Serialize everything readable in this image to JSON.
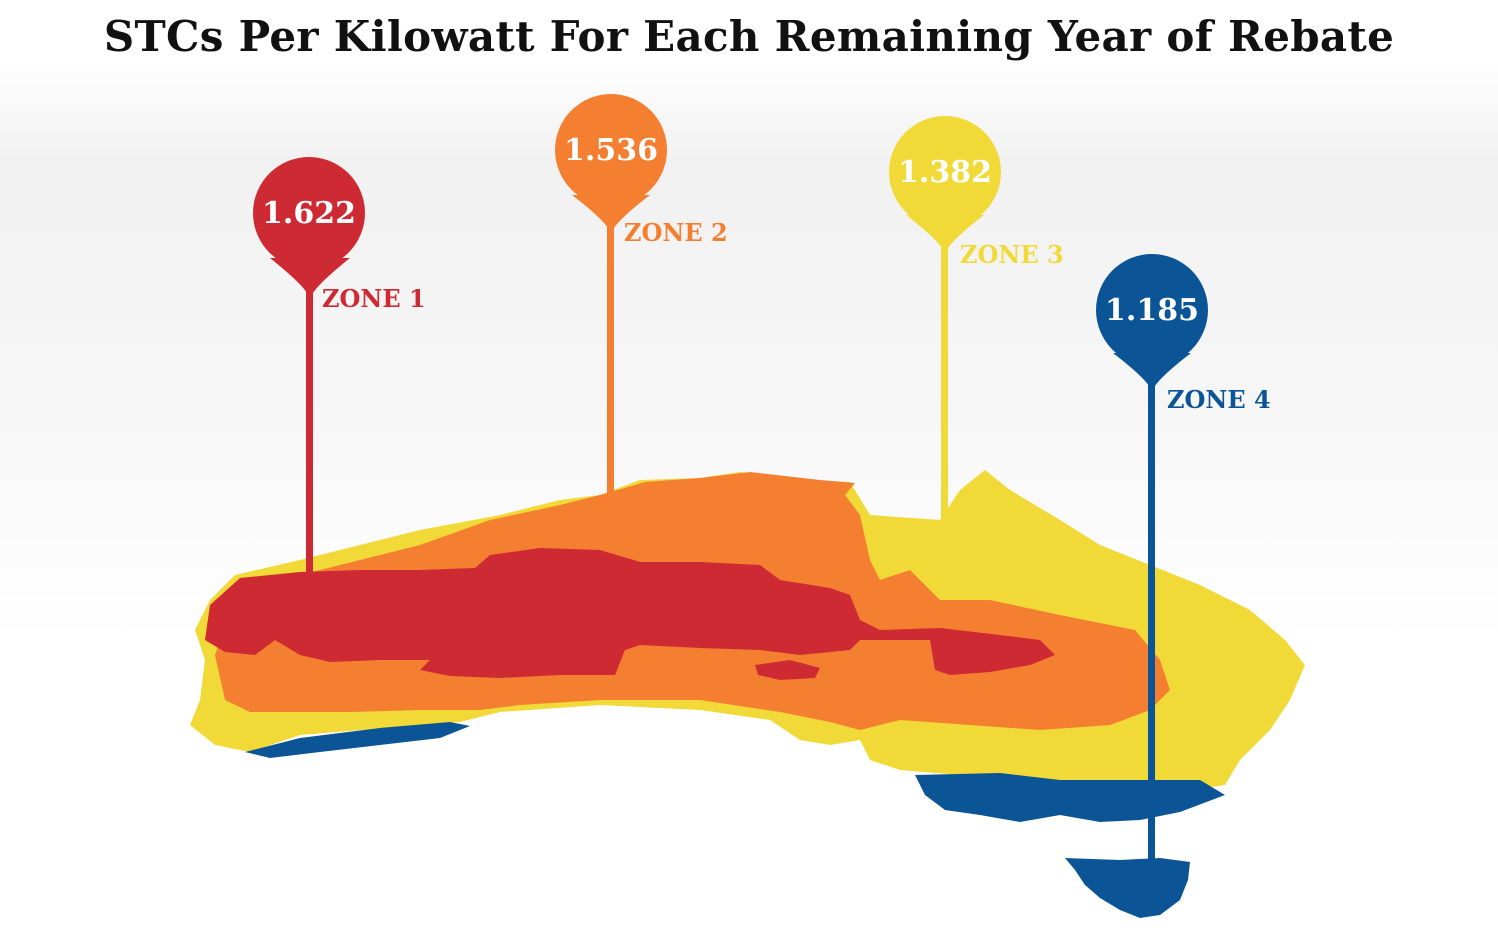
{
  "title": "STCs Per Kilowatt For Each Remaining Year of Rebate",
  "colors": {
    "zone1": "#cd2a33",
    "zone2": "#f47f31",
    "zone3": "#f1da37",
    "zone4": "#0b5596"
  },
  "zones": [
    {
      "label": "ZONE 1",
      "value": "1.622",
      "color": "#cd2a33"
    },
    {
      "label": "ZONE 2",
      "value": "1.536",
      "color": "#f47f31"
    },
    {
      "label": "ZONE 3",
      "value": "1.382",
      "color": "#f1da37"
    },
    {
      "label": "ZONE 4",
      "value": "1.185",
      "color": "#0b5596"
    }
  ]
}
